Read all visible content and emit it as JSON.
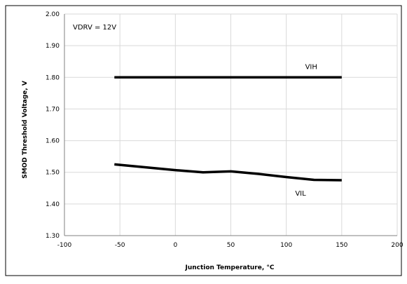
{
  "chart_data": {
    "type": "line",
    "title": "",
    "annotation": "VDRV = 12V",
    "xlabel": "Junction Temperature, °C",
    "ylabel": "SMOD Threshold Voltage, V",
    "xlim": [
      -100,
      200
    ],
    "ylim": [
      1.3,
      2.0
    ],
    "x_ticks": [
      "-100",
      "-50",
      "0",
      "50",
      "100",
      "150",
      "200"
    ],
    "y_ticks": [
      "1.30",
      "1.40",
      "1.50",
      "1.60",
      "1.70",
      "1.80",
      "1.90",
      "2.00"
    ],
    "grid": true,
    "legend": "none",
    "series": [
      {
        "name": "VIH",
        "color": "#000000",
        "points": [
          [
            -55,
            1.8
          ],
          [
            0,
            1.8
          ],
          [
            50,
            1.8
          ],
          [
            100,
            1.8
          ],
          [
            150,
            1.8
          ]
        ]
      },
      {
        "name": "VIL",
        "color": "#000000",
        "points": [
          [
            -55,
            1.525
          ],
          [
            -25,
            1.515
          ],
          [
            0,
            1.507
          ],
          [
            25,
            1.5
          ],
          [
            50,
            1.503
          ],
          [
            75,
            1.495
          ],
          [
            100,
            1.485
          ],
          [
            125,
            1.476
          ],
          [
            150,
            1.475
          ]
        ]
      }
    ]
  }
}
